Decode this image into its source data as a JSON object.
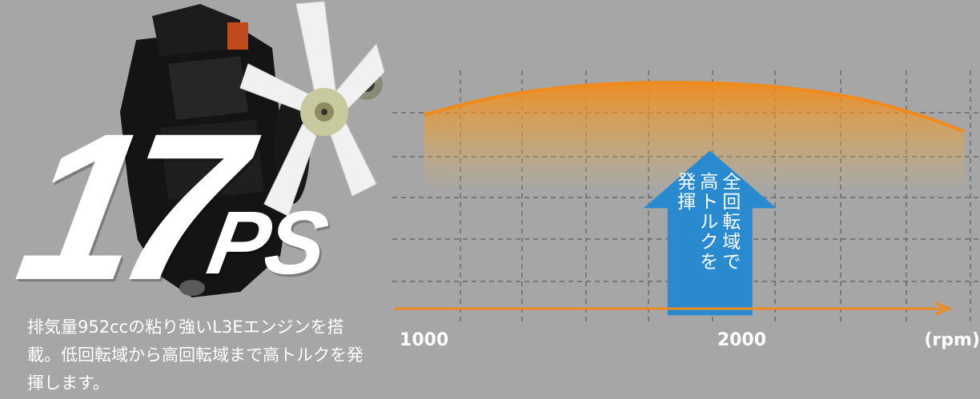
{
  "engine": {
    "power_value": "17",
    "power_unit": "PS",
    "description": "排気量952ccの粘り強いL3Eエンジンを搭載。低回転域から高回転域まで高トルクを発揮します。",
    "fan_color": "#f1f1f1",
    "block_color": "#141414"
  },
  "chart_data": {
    "type": "line",
    "title": "",
    "xlabel": "",
    "ylabel": "",
    "x_unit": "(rpm)",
    "x_ticks": [
      {
        "value": 1000,
        "label": "1000"
      },
      {
        "value": 2000,
        "label": "2000"
      }
    ],
    "xlim": [
      900,
      2750
    ],
    "ylim": [
      0,
      6
    ],
    "grid": true,
    "series": [
      {
        "x": [
          1000,
          1200,
          1400,
          1600,
          1800,
          2000,
          2200,
          2400,
          2600,
          2700
        ],
        "y": [
          4.95,
          5.35,
          5.58,
          5.7,
          5.72,
          5.68,
          5.55,
          5.3,
          4.85,
          4.55
        ],
        "color": "#f08a1c"
      }
    ],
    "axis_color": "#f08a1c",
    "arrow": {
      "color": "#2a8ad0",
      "x": 1900,
      "y_top": 4.1,
      "y_bottom": 0.2,
      "lines": [
        "全回転域で",
        "高トルクを",
        "発揮"
      ]
    }
  }
}
